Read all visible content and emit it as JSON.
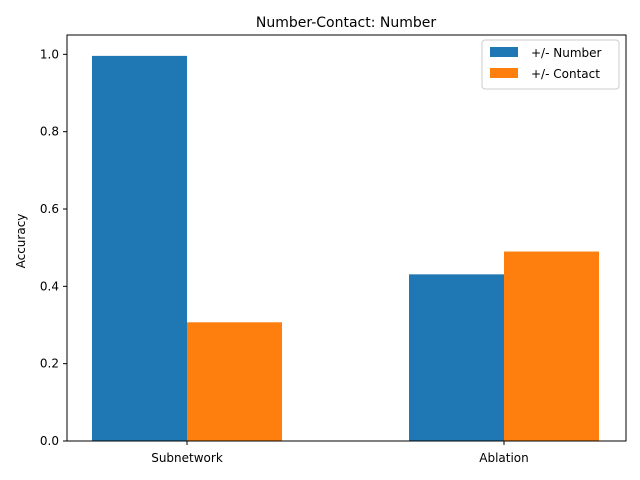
{
  "chart_data": {
    "type": "bar",
    "title": "Number-Contact: Number",
    "xlabel": "",
    "ylabel": "Accuracy",
    "categories": [
      "Subnetwork",
      "Ablation"
    ],
    "series": [
      {
        "name": "+/- Number",
        "values": [
          0.996,
          0.431
        ],
        "color": "#1f77b4"
      },
      {
        "name": "+/- Contact",
        "values": [
          0.307,
          0.49
        ],
        "color": "#ff7f0e"
      }
    ],
    "ylim": [
      0,
      1.05
    ],
    "yticks": [
      "0.0",
      "0.2",
      "0.4",
      "0.6",
      "0.8",
      "1.0"
    ],
    "grid": false,
    "legend_position": "top-right"
  }
}
